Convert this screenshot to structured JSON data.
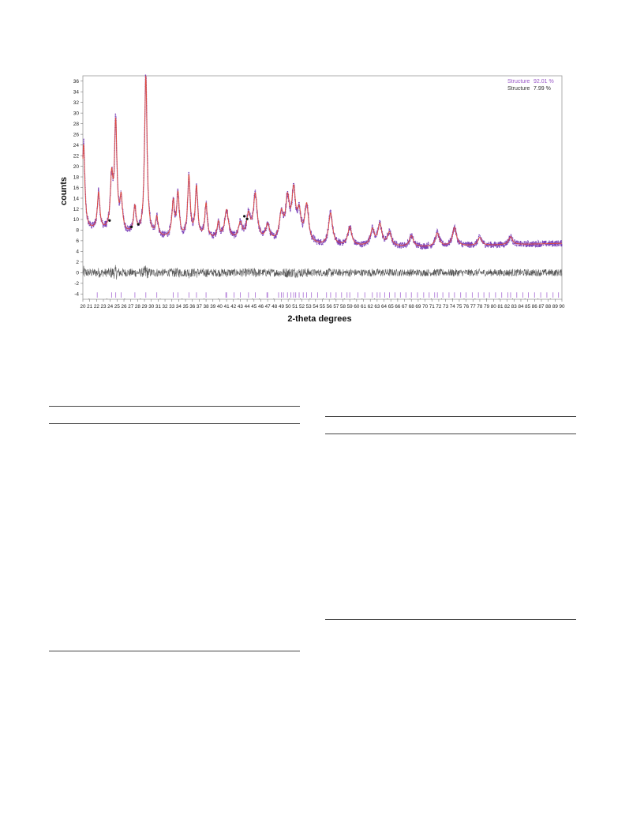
{
  "chart_data": {
    "type": "line",
    "xlabel": "2-theta degrees",
    "ylabel": "counts",
    "xlim": [
      20,
      90
    ],
    "ylim": [
      -5,
      37
    ],
    "x_ticks": [
      20,
      21,
      22,
      23,
      24,
      25,
      26,
      27,
      28,
      29,
      30,
      31,
      32,
      33,
      34,
      35,
      36,
      37,
      38,
      39,
      40,
      41,
      42,
      43,
      44,
      45,
      46,
      47,
      48,
      49,
      50,
      51,
      52,
      53,
      54,
      55,
      56,
      57,
      58,
      59,
      60,
      61,
      62,
      63,
      64,
      65,
      66,
      67,
      68,
      69,
      70,
      71,
      72,
      73,
      74,
      75,
      76,
      77,
      78,
      79,
      80,
      81,
      82,
      83,
      84,
      85,
      86,
      87,
      88,
      89,
      90
    ],
    "y_ticks": [
      -4,
      -2,
      0,
      2,
      4,
      6,
      8,
      10,
      12,
      14,
      16,
      18,
      20,
      22,
      24,
      26,
      28,
      30,
      32,
      34,
      36
    ],
    "legend_position": "top-right",
    "legend": [
      {
        "label": "Structure",
        "value": "92.01 %",
        "color": "#9b59c8"
      },
      {
        "label": "Structure",
        "value": "7.99 %",
        "color": "#333333"
      }
    ],
    "colors": {
      "observed": "#7a3fb8",
      "calculated": "#e04a3a",
      "difference": "#555555",
      "phase1_ticks": "#b07ad8",
      "phase2_ticks": "#333333"
    },
    "background": {
      "x": [
        20,
        24,
        30,
        40,
        55,
        70,
        90
      ],
      "y": [
        8,
        7.5,
        6.5,
        6,
        5,
        4.8,
        5.5
      ]
    },
    "peaks": [
      {
        "x": 20.1,
        "height": 16
      },
      {
        "x": 22.3,
        "height": 7
      },
      {
        "x": 24.2,
        "height": 9.5
      },
      {
        "x": 24.8,
        "height": 20
      },
      {
        "x": 25.6,
        "height": 6
      },
      {
        "x": 27.6,
        "height": 5
      },
      {
        "x": 29.2,
        "height": 30
      },
      {
        "x": 30.8,
        "height": 3.5
      },
      {
        "x": 33.2,
        "height": 6.5
      },
      {
        "x": 33.9,
        "height": 8
      },
      {
        "x": 35.5,
        "height": 11.5
      },
      {
        "x": 36.6,
        "height": 9.5
      },
      {
        "x": 38.0,
        "height": 6.5
      },
      {
        "x": 39.8,
        "height": 3
      },
      {
        "x": 41.0,
        "height": 5.5
      },
      {
        "x": 43.0,
        "height": 3
      },
      {
        "x": 44.2,
        "height": 4.5
      },
      {
        "x": 45.2,
        "height": 8.5
      },
      {
        "x": 47.0,
        "height": 3
      },
      {
        "x": 49.0,
        "height": 5
      },
      {
        "x": 49.9,
        "height": 7.5
      },
      {
        "x": 50.8,
        "height": 9
      },
      {
        "x": 51.6,
        "height": 5
      },
      {
        "x": 52.7,
        "height": 7
      },
      {
        "x": 56.2,
        "height": 6
      },
      {
        "x": 59.0,
        "height": 3.5
      },
      {
        "x": 62.3,
        "height": 3
      },
      {
        "x": 63.4,
        "height": 4
      },
      {
        "x": 64.8,
        "height": 2.5
      },
      {
        "x": 68.0,
        "height": 2
      },
      {
        "x": 71.8,
        "height": 2.5
      },
      {
        "x": 74.3,
        "height": 3.5
      },
      {
        "x": 78.0,
        "height": 1.5
      },
      {
        "x": 82.5,
        "height": 1.5
      }
    ],
    "impurity_markers": [
      {
        "x": 23.9,
        "y": 9.8
      },
      {
        "x": 27.1,
        "y": 8.6
      },
      {
        "x": 28.1,
        "y": 9.1
      },
      {
        "x": 43.6,
        "y": 10.6
      },
      {
        "x": 44.0,
        "y": 10.1
      }
    ],
    "phase1_tick_positions": [
      22.1,
      24.2,
      24.8,
      25.6,
      27.6,
      29.2,
      30.8,
      33.2,
      33.9,
      35.5,
      36.6,
      38.0,
      40.9,
      41.0,
      42.1,
      43.0,
      44.2,
      45.2,
      46.9,
      47.0,
      48.6,
      49.0,
      49.3,
      49.9,
      50.4,
      50.8,
      51.1,
      51.6,
      52.2,
      52.7,
      53.4,
      54.3,
      55.6,
      56.2,
      57.0,
      57.8,
      58.6,
      59.0,
      60.2,
      61.2,
      62.3,
      63.0,
      63.4,
      64.1,
      64.8,
      65.6,
      66.4,
      67.2,
      68.0,
      68.9,
      69.8,
      70.6,
      71.4,
      71.8,
      72.6,
      73.5,
      74.3,
      75.2,
      76.0,
      76.9,
      77.8,
      78.6,
      79.4,
      80.3,
      81.2,
      82.1,
      82.5,
      83.4,
      84.3,
      85.1,
      86.0,
      86.9,
      87.8,
      88.7,
      89.5
    ],
    "phase2_tick_positions": [
      20.9,
      23.5,
      26.1,
      28.4,
      31.3,
      34.5,
      37.7,
      39.8,
      42.7,
      44.8,
      45.8,
      47.9,
      50.2,
      51.8,
      53.2,
      55.1,
      56.8,
      58.2,
      59.7,
      60.8,
      62.6,
      64.5,
      66.0,
      67.8,
      69.3,
      70.9,
      72.4,
      74.0,
      75.7,
      77.3,
      79.0,
      80.8,
      82.8,
      84.6,
      86.5,
      88.3
    ]
  }
}
